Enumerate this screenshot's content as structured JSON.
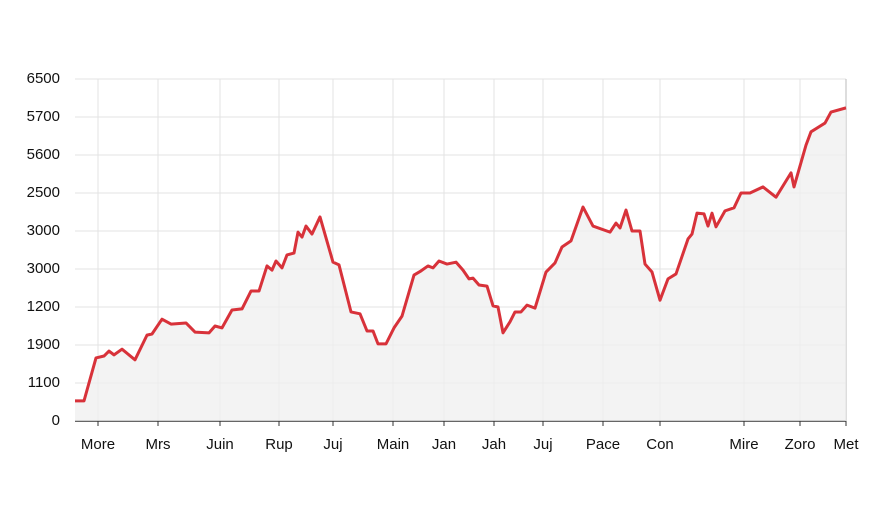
{
  "chart_data": {
    "type": "line",
    "x": [
      0,
      9,
      21,
      29,
      34,
      39,
      47,
      60,
      72,
      77,
      87,
      96,
      111,
      120,
      134,
      140,
      147,
      157,
      167,
      176,
      184,
      192,
      197,
      201,
      207,
      212,
      219,
      223,
      227,
      231,
      237,
      245,
      258,
      264,
      276,
      285,
      292,
      298,
      303,
      311,
      319,
      327,
      339,
      346,
      353,
      358,
      364,
      372,
      381,
      388,
      394,
      398,
      404,
      412,
      418,
      423,
      428,
      435,
      440,
      446,
      452,
      460,
      471,
      480,
      487,
      496,
      508,
      518,
      535,
      541,
      545,
      551,
      557,
      565,
      570,
      577,
      585,
      593,
      601,
      613,
      617,
      622,
      629,
      633,
      637,
      641,
      650,
      659,
      666,
      675,
      688,
      701,
      716,
      719,
      731,
      736,
      750,
      756,
      771
    ],
    "series": [
      {
        "color": "#d8323a",
        "values": [
          0.53,
          0.53,
          1.66,
          1.71,
          1.84,
          1.74,
          1.89,
          1.61,
          2.26,
          2.29,
          2.68,
          2.55,
          2.58,
          2.34,
          2.32,
          2.5,
          2.45,
          2.92,
          2.95,
          3.42,
          3.42,
          4.08,
          3.97,
          4.21,
          4.03,
          4.37,
          4.42,
          4.97,
          4.84,
          5.13,
          4.92,
          5.37,
          4.18,
          4.11,
          2.87,
          2.82,
          2.37,
          2.37,
          2.03,
          2.03,
          2.45,
          2.76,
          3.84,
          3.95,
          4.08,
          4.03,
          4.21,
          4.13,
          4.18,
          3.97,
          3.74,
          3.76,
          3.58,
          3.55,
          3.03,
          3.0,
          2.32,
          2.61,
          2.87,
          2.87,
          3.05,
          2.97,
          3.92,
          4.16,
          4.58,
          4.74,
          5.63,
          5.13,
          4.97,
          5.21,
          5.08,
          5.55,
          5.0,
          5.0,
          4.13,
          3.92,
          3.18,
          3.74,
          3.87,
          4.79,
          4.92,
          5.47,
          5.45,
          5.13,
          5.47,
          5.11,
          5.53,
          5.61,
          6.0,
          6.0,
          6.16,
          5.89,
          6.53,
          6.16,
          7.26,
          7.61,
          7.84,
          8.13,
          8.24
        ]
      }
    ],
    "xlim": [
      0,
      771
    ],
    "xticks": [
      {
        "value": 23,
        "label": "More"
      },
      {
        "value": 83,
        "label": "Mrs"
      },
      {
        "value": 145,
        "label": "Juin"
      },
      {
        "value": 204,
        "label": "Rup"
      },
      {
        "value": 258,
        "label": "Juj"
      },
      {
        "value": 318,
        "label": "Main"
      },
      {
        "value": 369,
        "label": "Jan"
      },
      {
        "value": 419,
        "label": "Jah"
      },
      {
        "value": 468,
        "label": "Juj"
      },
      {
        "value": 528,
        "label": "Pace"
      },
      {
        "value": 585,
        "label": "Con"
      },
      {
        "value": 669,
        "label": "Mire"
      },
      {
        "value": 725,
        "label": "Zoro"
      },
      {
        "value": 771,
        "label": "Met"
      }
    ],
    "ylim": [
      0,
      9
    ],
    "yticks": [
      {
        "value": 0,
        "label": "0"
      },
      {
        "value": 1,
        "label": "1100"
      },
      {
        "value": 2,
        "label": "1900"
      },
      {
        "value": 3,
        "label": "1200"
      },
      {
        "value": 4,
        "label": "3000"
      },
      {
        "value": 5,
        "label": "3000"
      },
      {
        "value": 6,
        "label": "2500"
      },
      {
        "value": 7,
        "label": "5600"
      },
      {
        "value": 8,
        "label": "5700"
      },
      {
        "value": 9,
        "label": "6500"
      }
    ],
    "grid": true
  }
}
